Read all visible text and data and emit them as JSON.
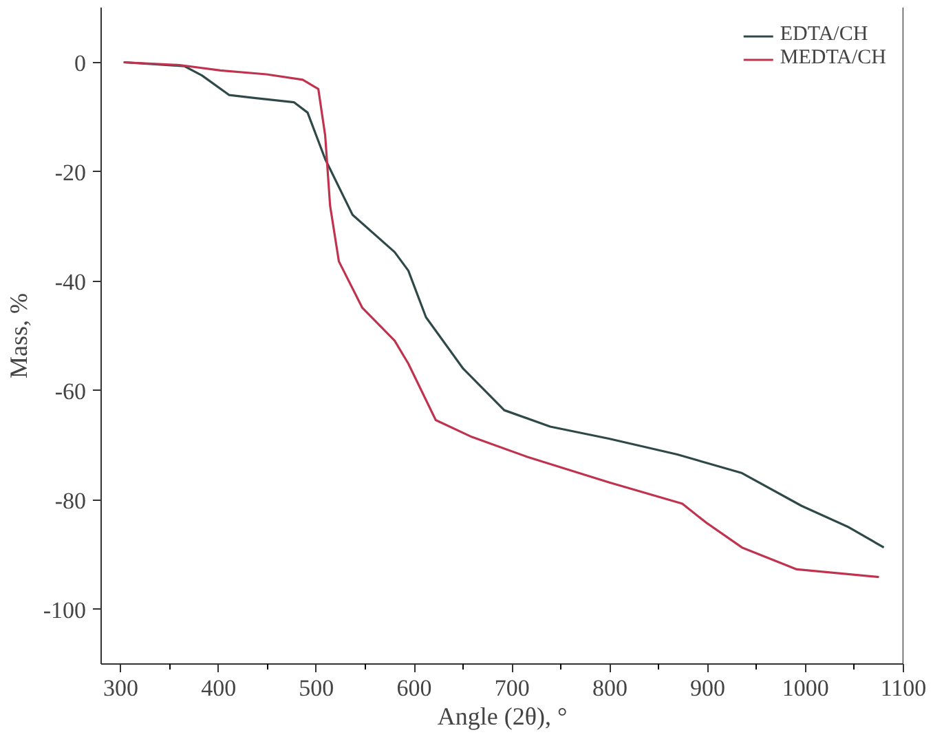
{
  "chart_data": {
    "type": "line",
    "xlabel": "Angle (2θ), °",
    "ylabel": "Mass, %",
    "xlim": [
      280,
      1100
    ],
    "ylim": [
      -110,
      10
    ],
    "xticks": [
      300,
      400,
      500,
      600,
      700,
      800,
      900,
      1000,
      1100
    ],
    "yticks": [
      0,
      -20,
      -40,
      -60,
      -80,
      -100
    ],
    "grid": false,
    "legend": "top right",
    "marker": "none",
    "line_style": "solid",
    "series": [
      {
        "name": "EDTA/CH",
        "color": "#2f4848",
        "x": [
          303,
          365,
          383,
          411,
          435,
          477,
          491,
          509,
          537,
          580,
          594,
          612,
          650,
          692,
          739,
          799,
          869,
          935,
          996,
          1043,
          1080
        ],
        "values": [
          0,
          -0.7,
          -2.4,
          -6,
          -6.5,
          -7.3,
          -9.2,
          -17.7,
          -27.9,
          -34.7,
          -38.1,
          -46.6,
          -56,
          -63.6,
          -66.6,
          -68.8,
          -71.7,
          -75.1,
          -81.1,
          -84.9,
          -88.7
        ]
      },
      {
        "name": "MEDTA/CH",
        "color": "#c0334f",
        "x": [
          303,
          360,
          402,
          449,
          486,
          502,
          509,
          514,
          523,
          547,
          580,
          594,
          622,
          659,
          715,
          799,
          874,
          898,
          935,
          991,
          1075
        ],
        "values": [
          0,
          -0.5,
          -1.5,
          -2.2,
          -3.2,
          -4.9,
          -13.4,
          -26.2,
          -36.4,
          -44.9,
          -50.9,
          -55.1,
          -65.4,
          -68.5,
          -72.1,
          -76.8,
          -80.7,
          -84.1,
          -88.7,
          -92.7,
          -94.1
        ]
      }
    ]
  }
}
